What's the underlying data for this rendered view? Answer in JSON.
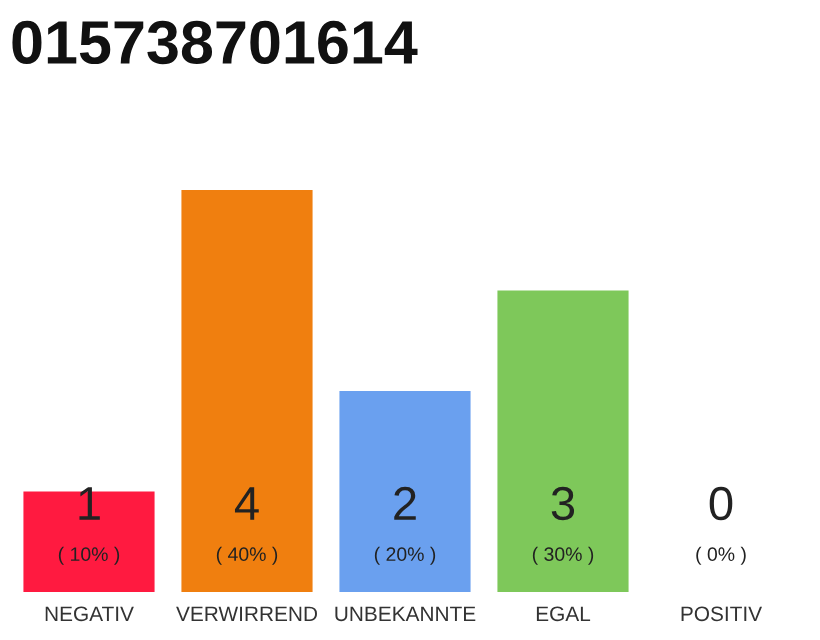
{
  "chart_data": {
    "type": "bar",
    "title": "015738701614",
    "categories": [
      "NEGATIV",
      "VERWIRREND",
      "UNBEKANNTE",
      "EGAL",
      "POSITIV"
    ],
    "ylim": [
      0,
      4
    ],
    "values": [
      1,
      4,
      2,
      3,
      0
    ],
    "colors": [
      "#ff1a40",
      "#f07f0f",
      "#6aa0ef",
      "#7ec85a",
      "#d0d0d0"
    ],
    "value_labels": [
      "1\n( 10% )",
      "4\n( 40% )",
      "2\n( 20% )",
      "3\n( 30% )",
      "0\n( 0% )"
    ],
    "grid": false,
    "legend": false
  }
}
